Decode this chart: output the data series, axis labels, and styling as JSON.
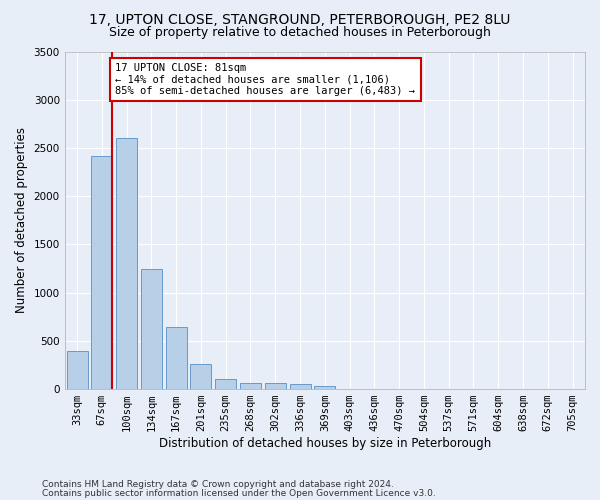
{
  "title_line1": "17, UPTON CLOSE, STANGROUND, PETERBOROUGH, PE2 8LU",
  "title_line2": "Size of property relative to detached houses in Peterborough",
  "xlabel": "Distribution of detached houses by size in Peterborough",
  "ylabel": "Number of detached properties",
  "categories": [
    "33sqm",
    "67sqm",
    "100sqm",
    "134sqm",
    "167sqm",
    "201sqm",
    "235sqm",
    "268sqm",
    "302sqm",
    "336sqm",
    "369sqm",
    "403sqm",
    "436sqm",
    "470sqm",
    "504sqm",
    "537sqm",
    "571sqm",
    "604sqm",
    "638sqm",
    "672sqm",
    "705sqm"
  ],
  "values": [
    390,
    2420,
    2600,
    1240,
    640,
    255,
    100,
    60,
    60,
    50,
    35,
    0,
    0,
    0,
    0,
    0,
    0,
    0,
    0,
    0,
    0
  ],
  "bar_color": "#b8cfe8",
  "bar_edge_color": "#6699cc",
  "vline_x": 1.42,
  "vline_color": "#cc0000",
  "annotation_text": "17 UPTON CLOSE: 81sqm\n← 14% of detached houses are smaller (1,106)\n85% of semi-detached houses are larger (6,483) →",
  "annotation_box_color": "#ffffff",
  "annotation_box_edge": "#cc0000",
  "ylim": [
    0,
    3500
  ],
  "yticks": [
    0,
    500,
    1000,
    1500,
    2000,
    2500,
    3000,
    3500
  ],
  "footer_line1": "Contains HM Land Registry data © Crown copyright and database right 2024.",
  "footer_line2": "Contains public sector information licensed under the Open Government Licence v3.0.",
  "bg_color": "#e8eef7",
  "plot_bg_color": "#e8eef7",
  "grid_color": "#ffffff",
  "title_fontsize": 10,
  "subtitle_fontsize": 9,
  "axis_label_fontsize": 8.5,
  "tick_fontsize": 7.5,
  "footer_fontsize": 6.5,
  "ann_fontsize": 7.5
}
